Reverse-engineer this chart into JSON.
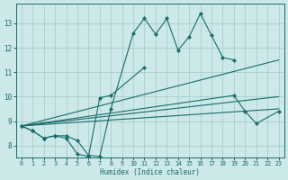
{
  "xlabel": "Humidex (Indice chaleur)",
  "bg_color": "#cce8e8",
  "grid_color": "#aacece",
  "line_color": "#1a6b6b",
  "xlim": [
    -0.5,
    23.5
  ],
  "ylim": [
    7.5,
    13.8
  ],
  "xticks": [
    0,
    1,
    2,
    3,
    4,
    5,
    6,
    7,
    8,
    9,
    10,
    11,
    12,
    13,
    14,
    15,
    16,
    17,
    18,
    19,
    20,
    21,
    22,
    23
  ],
  "yticks": [
    8,
    9,
    10,
    11,
    12,
    13
  ],
  "lines": [
    {
      "x": [
        0,
        1,
        2,
        3,
        4,
        5,
        6,
        7,
        8,
        10,
        11,
        12,
        13,
        14,
        15,
        16,
        17,
        18,
        19
      ],
      "y": [
        8.8,
        8.6,
        8.3,
        8.4,
        8.4,
        8.2,
        7.6,
        7.55,
        9.5,
        12.6,
        13.2,
        12.55,
        13.2,
        11.9,
        12.45,
        13.4,
        12.5,
        11.6,
        11.5
      ],
      "marker": "D",
      "markersize": 2.2
    },
    {
      "x": [
        0,
        1,
        2,
        3,
        4,
        5,
        6,
        7,
        8,
        11
      ],
      "y": [
        8.8,
        8.6,
        8.3,
        8.4,
        8.3,
        7.65,
        7.55,
        9.95,
        10.05,
        11.2
      ],
      "marker": "D",
      "markersize": 2.2
    },
    {
      "x": [
        0,
        19,
        20,
        21,
        23
      ],
      "y": [
        8.8,
        10.05,
        9.4,
        8.9,
        9.4
      ],
      "marker": "D",
      "markersize": 2.2
    },
    {
      "x": [
        0,
        23
      ],
      "y": [
        8.8,
        9.5
      ],
      "marker": null,
      "markersize": 0
    },
    {
      "x": [
        0,
        23
      ],
      "y": [
        8.8,
        10.0
      ],
      "marker": null,
      "markersize": 0
    },
    {
      "x": [
        0,
        23
      ],
      "y": [
        8.8,
        11.5
      ],
      "marker": null,
      "markersize": 0
    }
  ]
}
